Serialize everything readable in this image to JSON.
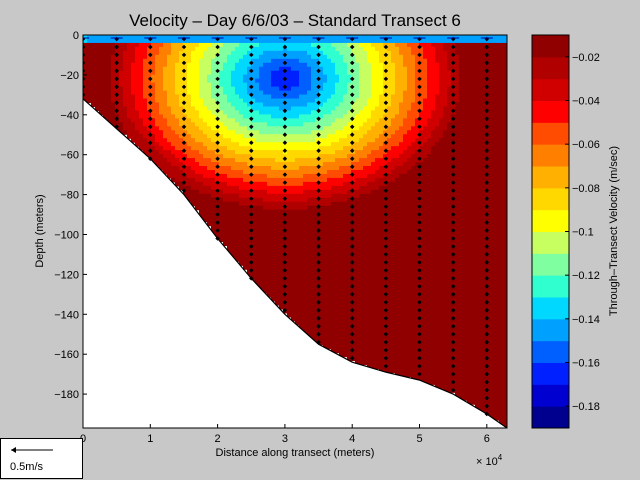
{
  "chart_data": {
    "type": "contour",
    "title": "Velocity – Day 6/6/03 – Standard Transect 6",
    "xlabel": "Distance along transect (meters)",
    "ylabel": "Depth (meters)",
    "x_multiplier_label": "× 10",
    "x_multiplier_exp": "4",
    "x_ticks": [
      "0",
      "1",
      "2",
      "3",
      "4",
      "5",
      "6"
    ],
    "y_ticks": [
      "0",
      "−20",
      "−40",
      "−60",
      "−80",
      "−100",
      "−120",
      "−140",
      "−160",
      "−180"
    ],
    "xlim": [
      0,
      6.3
    ],
    "ylim": [
      -197,
      0
    ],
    "bathymetry": {
      "x": [
        0,
        0.5,
        1.0,
        1.5,
        2.0,
        2.5,
        3.0,
        3.5,
        4.0,
        4.5,
        5.0,
        5.5,
        6.0,
        6.3
      ],
      "depth": [
        -32,
        -47,
        -62,
        -80,
        -102,
        -122,
        -140,
        -155,
        -164,
        -169,
        -173,
        -180,
        -190,
        -197
      ]
    },
    "velocity_core": {
      "x": 3.0,
      "depth": -22,
      "value": -0.17
    },
    "bottom_value": -0.02,
    "colorbar": {
      "label": "Through–Transect Velocity (m/sec)",
      "ticks": [
        "−0.02",
        "−0.04",
        "−0.06",
        "−0.08",
        "−0.1",
        "−0.12",
        "−0.14",
        "−0.16",
        "−0.18"
      ],
      "range": [
        -0.19,
        -0.01
      ],
      "colors": [
        "#00008f",
        "#0000d0",
        "#0020ff",
        "#0060ff",
        "#00a0ff",
        "#00d8ff",
        "#30ffd0",
        "#80ffa0",
        "#c8ff60",
        "#ffff00",
        "#ffd800",
        "#ffb000",
        "#ff8000",
        "#ff4c00",
        "#ff0000",
        "#d00000",
        "#b00000",
        "#900000"
      ]
    },
    "scale_arrow_label": "0.5m/s",
    "grid": false
  }
}
